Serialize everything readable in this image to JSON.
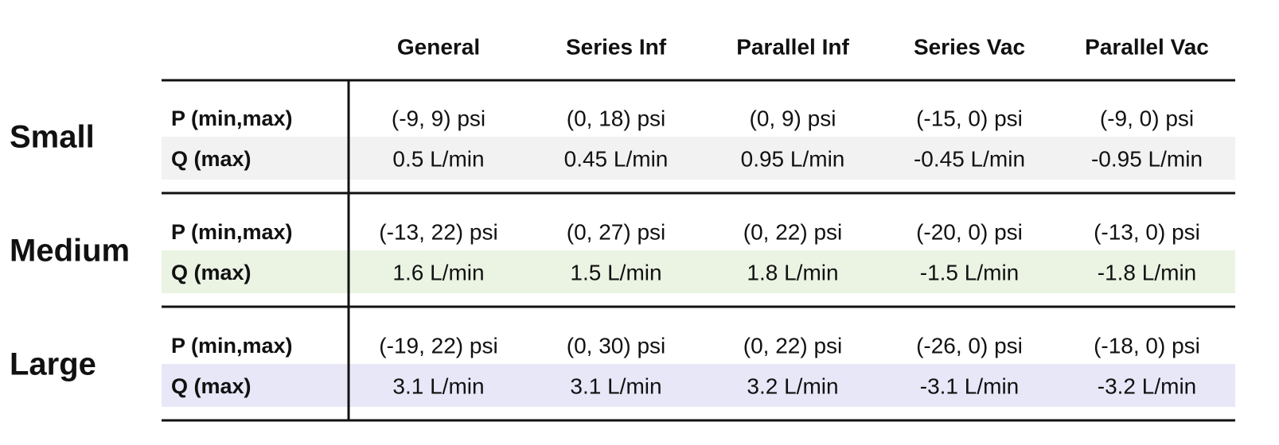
{
  "table": {
    "columns": [
      "General",
      "Series Inf",
      "Parallel Inf",
      "Series Vac",
      "Parallel Vac"
    ],
    "groups": [
      {
        "name": "Small",
        "rows": [
          {
            "label": "P (min,max)",
            "cells": [
              "(-9, 9) psi",
              "(0, 18) psi",
              "(0, 9) psi",
              "(-15, 0) psi",
              "(-9, 0) psi"
            ]
          },
          {
            "label": "Q (max)",
            "cells": [
              "0.5 L/min",
              "0.45 L/min",
              "0.95 L/min",
              "-0.45 L/min",
              "-0.95 L/min"
            ]
          }
        ]
      },
      {
        "name": "Medium",
        "rows": [
          {
            "label": "P (min,max)",
            "cells": [
              "(-13, 22) psi",
              "(0, 27) psi",
              "(0, 22) psi",
              "(-20, 0) psi",
              "(-13, 0) psi"
            ]
          },
          {
            "label": "Q (max)",
            "cells": [
              "1.6 L/min",
              "1.5 L/min",
              "1.8 L/min",
              "-1.5 L/min",
              "-1.8 L/min"
            ]
          }
        ]
      },
      {
        "name": "Large",
        "rows": [
          {
            "label": "P (min,max)",
            "cells": [
              "(-19, 22) psi",
              "(0, 30) psi",
              "(0, 22) psi",
              "(-26, 0) psi",
              "(-18, 0) psi"
            ]
          },
          {
            "label": "Q (max)",
            "cells": [
              "3.1 L/min",
              "3.1 L/min",
              "3.2 L/min",
              "-3.1 L/min",
              "-3.2 L/min"
            ]
          }
        ]
      }
    ]
  }
}
